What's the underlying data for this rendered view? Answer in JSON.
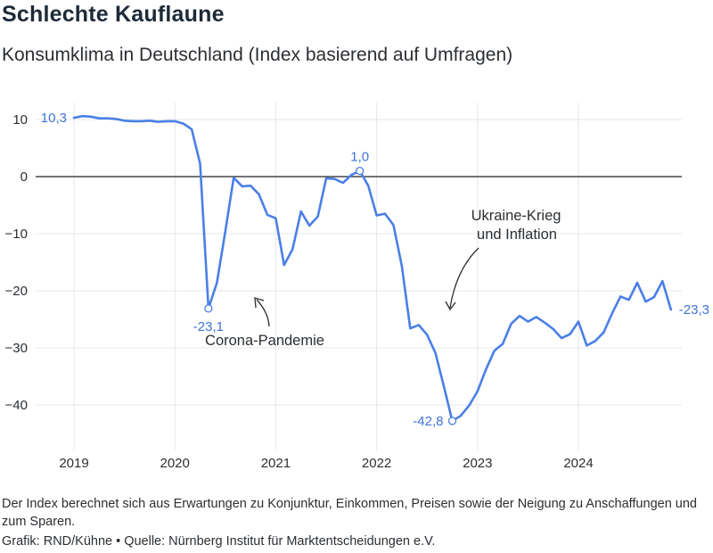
{
  "header": {
    "title": "Schlechte Kauflaune",
    "subtitle": "Konsumklima in Deutschland (Index basierend auf Umfragen)"
  },
  "footer": {
    "note": "Der Index berechnet sich aus Erwartungen zu Konjunktur, Einkommen, Preisen sowie der Neigung zu Anschaffungen und zum Sparen.",
    "credit_graphic": "Grafik: RND/Kühne",
    "credit_separator": "•",
    "credit_source": "Quelle: Nürnberg Institut für Marktentscheidungen e.V."
  },
  "colors": {
    "line": "#4a7fe6",
    "grid": "#e4e7eb",
    "zero_line": "#222222",
    "text": "#2b2f33",
    "label_blue": "#3f73d8"
  },
  "chart_data": {
    "type": "line",
    "title": "Schlechte Kauflaune",
    "subtitle": "Konsumklima in Deutschland (Index basierend auf Umfragen)",
    "xlabel": "",
    "ylabel": "",
    "xlim": [
      2019.0,
      2024.95
    ],
    "ylim": [
      -47,
      12
    ],
    "x_ticks": [
      2019,
      2020,
      2021,
      2022,
      2023,
      2024
    ],
    "x_tick_labels": [
      "2019",
      "2020",
      "2021",
      "2022",
      "2023",
      "2024"
    ],
    "y_ticks": [
      10,
      0,
      -10,
      -20,
      -30,
      -40
    ],
    "y_tick_labels": [
      "10",
      "0",
      "−10",
      "−20",
      "−30",
      "−40"
    ],
    "grid": true,
    "series": [
      {
        "x": [
          2019.0,
          2019.083,
          2019.167,
          2019.25,
          2019.333,
          2019.417,
          2019.5,
          2019.583,
          2019.667,
          2019.75,
          2019.833,
          2019.917,
          2020.0,
          2020.083,
          2020.167,
          2020.25,
          2020.333,
          2020.417,
          2020.5,
          2020.583,
          2020.667,
          2020.75,
          2020.833,
          2020.917,
          2021.0,
          2021.083,
          2021.167,
          2021.25,
          2021.333,
          2021.417,
          2021.5,
          2021.583,
          2021.667,
          2021.75,
          2021.833,
          2021.917,
          2022.0,
          2022.083,
          2022.167,
          2022.25,
          2022.333,
          2022.417,
          2022.5,
          2022.583,
          2022.667,
          2022.75,
          2022.833,
          2022.917,
          2023.0,
          2023.083,
          2023.167,
          2023.25,
          2023.333,
          2023.417,
          2023.5,
          2023.583,
          2023.667,
          2023.75,
          2023.833,
          2023.917,
          2024.0,
          2024.083,
          2024.167,
          2024.25,
          2024.333,
          2024.417,
          2024.5,
          2024.583,
          2024.667,
          2024.75,
          2024.833,
          2024.917
        ],
        "y": [
          10.3,
          10.6,
          10.5,
          10.2,
          10.2,
          10.1,
          9.8,
          9.7,
          9.7,
          9.8,
          9.6,
          9.7,
          9.7,
          9.3,
          8.3,
          2.3,
          -23.1,
          -18.6,
          -9.6,
          -0.2,
          -1.7,
          -1.6,
          -3.1,
          -6.7,
          -7.3,
          -15.5,
          -12.7,
          -6.1,
          -8.6,
          -7.0,
          -0.3,
          -0.4,
          -1.1,
          0.3,
          1.0,
          -1.6,
          -6.8,
          -6.5,
          -8.5,
          -15.7,
          -26.6,
          -26.0,
          -27.7,
          -30.9,
          -36.8,
          -42.8,
          -41.9,
          -40.1,
          -37.6,
          -33.8,
          -30.5,
          -29.3,
          -25.8,
          -24.4,
          -25.4,
          -24.6,
          -25.6,
          -26.7,
          -28.3,
          -27.6,
          -25.4,
          -29.6,
          -28.8,
          -27.3,
          -24.0,
          -21.0,
          -21.6,
          -18.6,
          -21.9,
          -21.1,
          -18.3,
          -23.3
        ]
      }
    ],
    "point_labels": [
      {
        "text": "10,3",
        "x": 2019.0,
        "y": 10.3
      },
      {
        "text": "-23,1",
        "x": 2020.333,
        "y": -23.1
      },
      {
        "text": "1,0",
        "x": 2021.833,
        "y": 1.0
      },
      {
        "text": "-42,8",
        "x": 2022.75,
        "y": -42.8
      },
      {
        "text": "-23,3",
        "x": 2024.917,
        "y": -23.3
      }
    ],
    "annotations": [
      {
        "lines": [
          "Ukraine-Krieg",
          "und Inflation"
        ]
      },
      {
        "lines": [
          "Corona-Pandemie"
        ]
      }
    ]
  }
}
